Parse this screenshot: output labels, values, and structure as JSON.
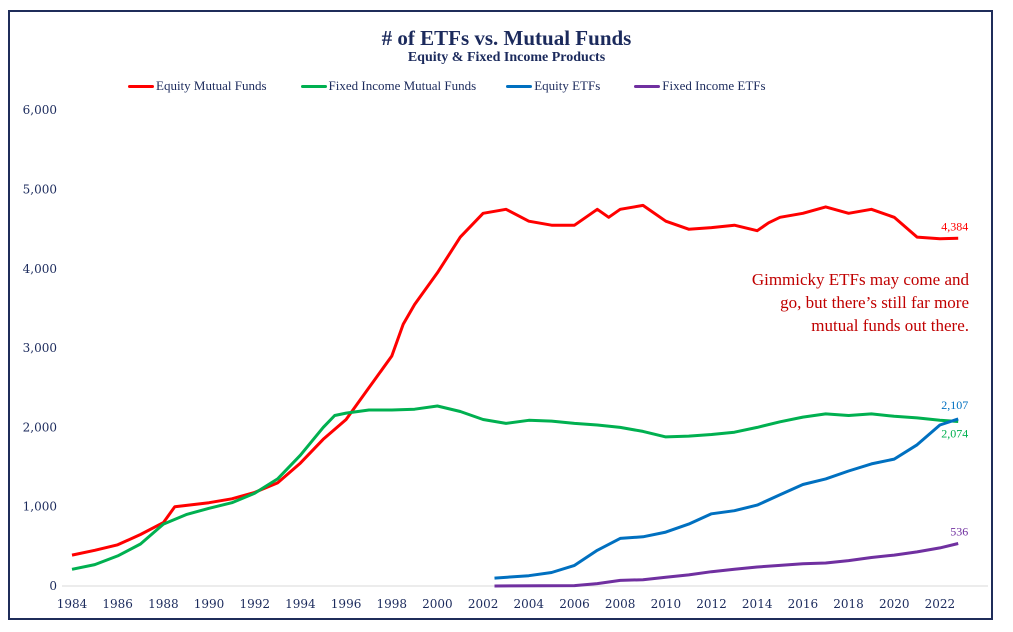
{
  "chart_data": {
    "type": "line",
    "title": "# of ETFs vs. Mutual Funds",
    "subtitle": "Equity & Fixed Income Products",
    "xlabel": "",
    "ylabel": "",
    "xlim": [
      1984,
      2023.5
    ],
    "ylim": [
      0,
      6000
    ],
    "x_ticks": [
      "1984",
      "1986",
      "1988",
      "1990",
      "1992",
      "1994",
      "1996",
      "1998",
      "2000",
      "2002",
      "2004",
      "2006",
      "2008",
      "2010",
      "2012",
      "2014",
      "2016",
      "2018",
      "2020",
      "2022"
    ],
    "y_ticks": [
      "0",
      "1,000",
      "2,000",
      "3,000",
      "4,000",
      "5,000",
      "6,000"
    ],
    "grid": false,
    "legend": "top",
    "annotation": [
      "Gimmicky ETFs may come and",
      "go, but there’s still far more",
      "mutual funds out there."
    ],
    "annotation_color": "#c00000",
    "series": [
      {
        "name": "Equity Mutual Funds",
        "color": "#ff0000",
        "end_label": "4,384",
        "x": [
          1984,
          1985,
          1986,
          1987,
          1988,
          1988.5,
          1990,
          1991,
          1992,
          1993,
          1994,
          1995,
          1996,
          1997,
          1998,
          1998.5,
          1999,
          2000,
          2001,
          2002,
          2003,
          2004,
          2005,
          2006,
          2007,
          2007.5,
          2008,
          2009,
          2010,
          2011,
          2012,
          2013,
          2014,
          2014.5,
          2015,
          2016,
          2017,
          2018,
          2019,
          2020,
          2021,
          2022,
          2022.8
        ],
        "y": [
          390,
          450,
          520,
          650,
          800,
          1000,
          1050,
          1100,
          1180,
          1300,
          1550,
          1850,
          2100,
          2500,
          2900,
          3300,
          3550,
          3950,
          4400,
          4700,
          4750,
          4600,
          4550,
          4550,
          4750,
          4650,
          4750,
          4800,
          4600,
          4500,
          4520,
          4550,
          4480,
          4580,
          4650,
          4700,
          4780,
          4700,
          4750,
          4650,
          4400,
          4380,
          4384
        ]
      },
      {
        "name": "Fixed Income Mutual Funds",
        "color": "#00b050",
        "end_label": "2,074",
        "x": [
          1984,
          1985,
          1986,
          1987,
          1988,
          1989,
          1990,
          1991,
          1992,
          1993,
          1994,
          1995,
          1995.5,
          1996,
          1997,
          1998,
          1999,
          2000,
          2001,
          2002,
          2003,
          2004,
          2005,
          2006,
          2007,
          2008,
          2009,
          2010,
          2011,
          2012,
          2013,
          2014,
          2015,
          2016,
          2017,
          2018,
          2019,
          2020,
          2021,
          2022,
          2022.8
        ],
        "y": [
          210,
          270,
          380,
          530,
          780,
          900,
          980,
          1050,
          1170,
          1350,
          1650,
          2000,
          2150,
          2180,
          2220,
          2220,
          2230,
          2270,
          2200,
          2100,
          2050,
          2090,
          2080,
          2050,
          2030,
          2000,
          1950,
          1880,
          1890,
          1910,
          1940,
          2000,
          2070,
          2130,
          2170,
          2150,
          2170,
          2140,
          2120,
          2090,
          2074
        ]
      },
      {
        "name": "Equity ETFs",
        "color": "#0070c0",
        "end_label": "2,107",
        "x": [
          2002.5,
          2004,
          2005,
          2006,
          2007,
          2008,
          2009,
          2010,
          2011,
          2012,
          2013,
          2014,
          2015,
          2016,
          2017,
          2018,
          2019,
          2020,
          2021,
          2022,
          2022.8
        ],
        "y": [
          100,
          130,
          170,
          260,
          450,
          600,
          620,
          680,
          780,
          910,
          950,
          1020,
          1150,
          1280,
          1350,
          1450,
          1540,
          1600,
          1780,
          2030,
          2107
        ]
      },
      {
        "name": "Fixed Income ETFs",
        "color": "#7030a0",
        "end_label": "536",
        "x": [
          2002.5,
          2006,
          2007,
          2008,
          2009,
          2010,
          2011,
          2012,
          2013,
          2014,
          2015,
          2016,
          2017,
          2018,
          2019,
          2020,
          2021,
          2022,
          2022.8
        ],
        "y": [
          0,
          5,
          30,
          70,
          80,
          110,
          140,
          180,
          210,
          240,
          260,
          280,
          290,
          320,
          360,
          390,
          430,
          480,
          536
        ]
      }
    ]
  }
}
